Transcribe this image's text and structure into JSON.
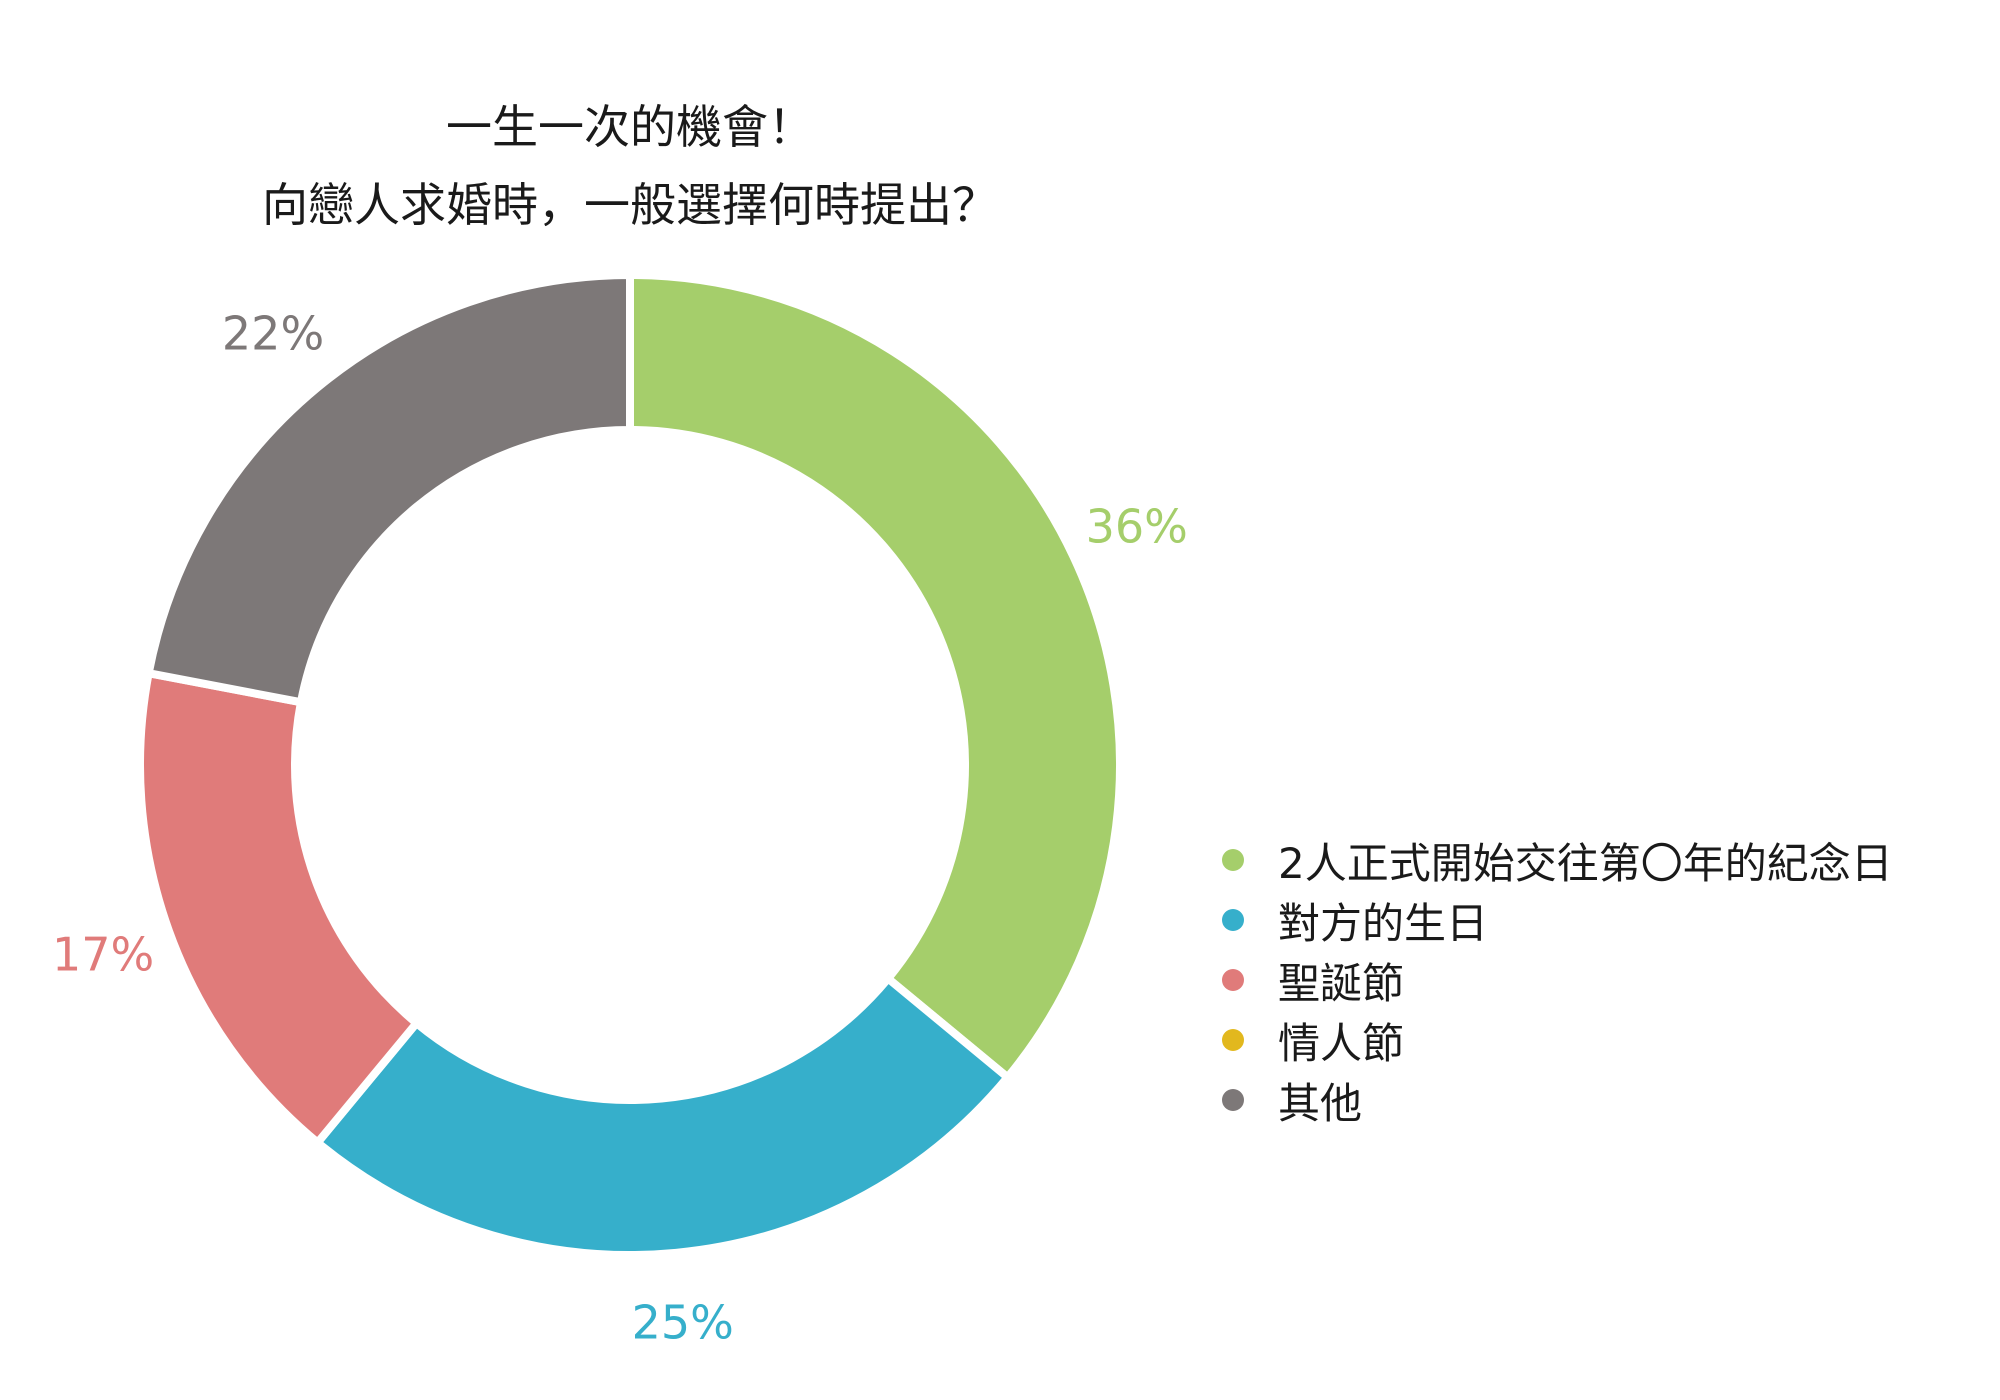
{
  "chart_data": {
    "type": "pie",
    "variant": "donut",
    "title_lines": [
      "一生一次的機會！",
      "向戀人求婚時，一般選擇何時提出？"
    ],
    "slices": [
      {
        "name": "2人正式開始交往第〇年的紀念日",
        "value": 36,
        "label": "36%",
        "color": "#a5ce6b"
      },
      {
        "name": "對方的生日",
        "value": 25,
        "label": "25%",
        "color": "#36afcb"
      },
      {
        "name": "聖誕節",
        "value": 17,
        "label": "17%",
        "color": "#e07b7a"
      },
      {
        "name": "情人節",
        "value": 0,
        "label": "",
        "color": "#e2b81e"
      },
      {
        "name": "其他",
        "value": 22,
        "label": "22%",
        "color": "#7d7878"
      }
    ],
    "unit": "%",
    "start_angle_deg": 0,
    "direction": "clockwise",
    "legend_position": "right"
  }
}
